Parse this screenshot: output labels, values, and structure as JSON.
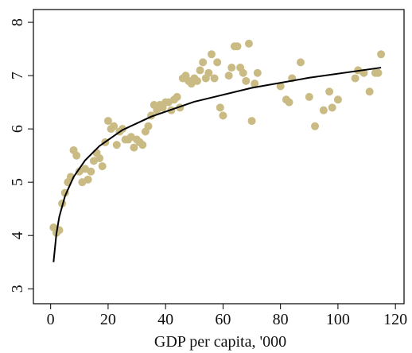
{
  "chart_data": {
    "type": "scatter",
    "xlabel": "GDP per capita, '000",
    "xlim": [
      -6,
      123
    ],
    "ylim": [
      2.72,
      8.24
    ],
    "xticks": [
      0,
      20,
      40,
      60,
      80,
      100,
      120
    ],
    "yticks": [
      3,
      4,
      5,
      6,
      7,
      8
    ],
    "grid": false,
    "series": [
      {
        "color": "#c9bb83",
        "x": [
          1,
          2,
          3,
          4,
          5,
          6,
          7,
          8,
          9,
          10,
          11,
          12,
          13,
          14,
          15,
          16,
          17,
          18,
          19,
          20,
          21,
          22,
          23,
          24,
          25,
          26,
          27,
          28,
          29,
          30,
          31,
          32,
          33,
          34,
          35,
          36,
          37,
          38,
          39,
          40,
          41,
          42,
          43,
          44,
          45,
          46,
          47,
          48,
          49,
          50,
          51,
          52,
          53,
          54,
          55,
          56,
          57,
          58,
          59,
          60,
          62,
          63,
          64,
          65,
          66,
          67,
          68,
          69,
          70,
          71,
          72,
          80,
          82,
          83,
          84,
          87,
          90,
          92,
          95,
          97,
          98,
          100,
          106,
          107,
          109,
          111,
          113,
          114,
          115
        ],
        "values": [
          4.15,
          4.05,
          4.1,
          4.6,
          4.8,
          5.0,
          5.1,
          5.6,
          5.5,
          5.2,
          5.0,
          5.25,
          5.05,
          5.2,
          5.4,
          5.55,
          5.45,
          5.3,
          5.75,
          6.15,
          6.0,
          6.05,
          5.7,
          5.95,
          6.0,
          5.8,
          5.8,
          5.85,
          5.65,
          5.8,
          5.75,
          5.7,
          5.95,
          6.05,
          6.25,
          6.45,
          6.35,
          6.45,
          6.4,
          6.5,
          6.5,
          6.35,
          6.55,
          6.6,
          6.4,
          6.95,
          7.0,
          6.9,
          6.85,
          6.95,
          6.9,
          7.1,
          7.25,
          6.95,
          7.05,
          7.4,
          6.95,
          7.25,
          6.4,
          6.25,
          7.0,
          7.15,
          7.55,
          7.55,
          7.15,
          7.05,
          6.9,
          7.6,
          6.15,
          6.85,
          7.05,
          6.8,
          6.55,
          6.5,
          6.95,
          7.25,
          6.6,
          6.05,
          6.35,
          6.7,
          6.4,
          6.55,
          6.95,
          7.1,
          7.05,
          6.7,
          7.05,
          7.05,
          7.4
        ]
      },
      {
        "type": "line",
        "color": "#000000",
        "x": [
          1,
          2,
          3,
          5,
          8,
          12,
          17,
          25,
          35,
          50,
          70,
          90,
          115
        ],
        "values": [
          3.5,
          4.03,
          4.35,
          4.74,
          5.1,
          5.41,
          5.68,
          5.98,
          6.23,
          6.51,
          6.77,
          6.96,
          7.15
        ]
      }
    ]
  }
}
